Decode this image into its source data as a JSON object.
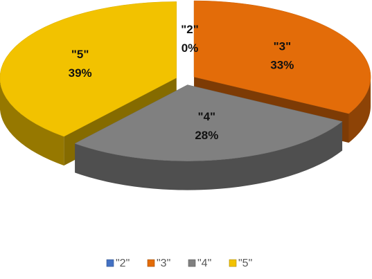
{
  "chart_data": {
    "type": "pie",
    "style": "3d-exploded",
    "categories": [
      "\"2\"",
      "\"3\"",
      "\"4\"",
      "\"5\""
    ],
    "values": [
      0,
      33,
      28,
      39
    ],
    "data_labels": [
      {
        "category": "\"2\"",
        "percent": "0%"
      },
      {
        "category": "\"3\"",
        "percent": "33%"
      },
      {
        "category": "\"4\"",
        "percent": "28%"
      },
      {
        "category": "\"5\"",
        "percent": "39%"
      }
    ],
    "colors": [
      "#4472C4",
      "#E36C09",
      "#808080",
      "#F2C200"
    ],
    "legend": {
      "position": "bottom",
      "entries": [
        "\"2\"",
        "\"3\"",
        "\"4\"",
        "\"5\""
      ]
    }
  }
}
